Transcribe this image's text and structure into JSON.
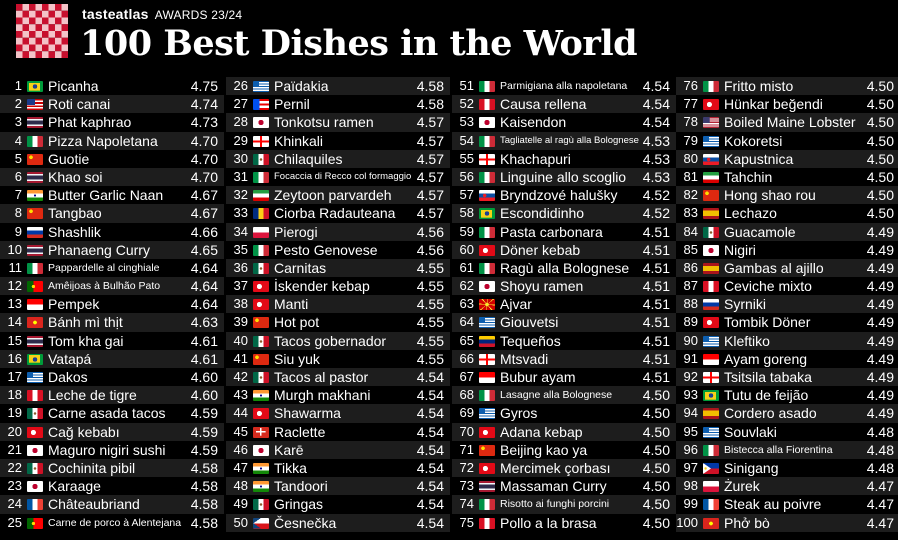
{
  "header": {
    "brand": "tasteatlas",
    "awards": "AWARDS 23/24",
    "title": "100 Best Dishes in the World"
  },
  "colors": {
    "background": "#000000",
    "row_alt": "#1d1d1d",
    "logo_red": "#c8102e",
    "text": "#ffffff"
  },
  "dishes": [
    {
      "rank": "1",
      "name": "Picanha",
      "score": "4.75",
      "flag": "brazil"
    },
    {
      "rank": "2",
      "name": "Roti canai",
      "score": "4.74",
      "flag": "malaysia"
    },
    {
      "rank": "3",
      "name": "Phat kaphrao",
      "score": "4.73",
      "flag": "thailand"
    },
    {
      "rank": "4",
      "name": "Pizza Napoletana",
      "score": "4.70",
      "flag": "italy"
    },
    {
      "rank": "5",
      "name": "Guotie",
      "score": "4.70",
      "flag": "china"
    },
    {
      "rank": "6",
      "name": "Khao soi",
      "score": "4.70",
      "flag": "thailand"
    },
    {
      "rank": "7",
      "name": "Butter Garlic Naan",
      "score": "4.67",
      "flag": "india"
    },
    {
      "rank": "8",
      "name": "Tangbao",
      "score": "4.67",
      "flag": "china"
    },
    {
      "rank": "9",
      "name": "Shashlik",
      "score": "4.66",
      "flag": "russia"
    },
    {
      "rank": "10",
      "name": "Phanaeng Curry",
      "score": "4.65",
      "flag": "thailand"
    },
    {
      "rank": "11",
      "name": "Pappardelle al cinghiale",
      "score": "4.64",
      "flag": "italy"
    },
    {
      "rank": "12",
      "name": "Amêijoas à Bulhão Pato",
      "score": "4.64",
      "flag": "portugal"
    },
    {
      "rank": "13",
      "name": "Pempek",
      "score": "4.64",
      "flag": "indonesia"
    },
    {
      "rank": "14",
      "name": "Bánh mì thịt",
      "score": "4.63",
      "flag": "vietnam"
    },
    {
      "rank": "15",
      "name": "Tom kha gai",
      "score": "4.61",
      "flag": "thailand"
    },
    {
      "rank": "16",
      "name": "Vatapá",
      "score": "4.61",
      "flag": "brazil"
    },
    {
      "rank": "17",
      "name": "Dakos",
      "score": "4.60",
      "flag": "greece"
    },
    {
      "rank": "18",
      "name": "Leche de tigre",
      "score": "4.60",
      "flag": "peru"
    },
    {
      "rank": "19",
      "name": "Carne asada tacos",
      "score": "4.59",
      "flag": "mexico"
    },
    {
      "rank": "20",
      "name": "Cağ kebabı",
      "score": "4.59",
      "flag": "turkey"
    },
    {
      "rank": "21",
      "name": "Maguro nigiri sushi",
      "score": "4.59",
      "flag": "japan"
    },
    {
      "rank": "22",
      "name": "Cochinita pibil",
      "score": "4.58",
      "flag": "mexico"
    },
    {
      "rank": "23",
      "name": "Karaage",
      "score": "4.58",
      "flag": "japan"
    },
    {
      "rank": "24",
      "name": "Châteaubriand",
      "score": "4.58",
      "flag": "france"
    },
    {
      "rank": "25",
      "name": "Carne de porco à Alentejana",
      "score": "4.58",
      "flag": "portugal"
    },
    {
      "rank": "26",
      "name": "Païdakia",
      "score": "4.58",
      "flag": "greece"
    },
    {
      "rank": "27",
      "name": "Pernil",
      "score": "4.58",
      "flag": "puertorico"
    },
    {
      "rank": "28",
      "name": "Tonkotsu ramen",
      "score": "4.57",
      "flag": "japan"
    },
    {
      "rank": "29",
      "name": "Khinkali",
      "score": "4.57",
      "flag": "georgia"
    },
    {
      "rank": "30",
      "name": "Chilaquiles",
      "score": "4.57",
      "flag": "mexico"
    },
    {
      "rank": "31",
      "name": "Focaccia di Recco col formaggio",
      "score": "4.57",
      "flag": "italy"
    },
    {
      "rank": "32",
      "name": "Zeytoon parvardeh",
      "score": "4.57",
      "flag": "iran"
    },
    {
      "rank": "33",
      "name": "Ciorba Radauteana",
      "score": "4.57",
      "flag": "romania"
    },
    {
      "rank": "34",
      "name": "Pierogi",
      "score": "4.56",
      "flag": "poland"
    },
    {
      "rank": "35",
      "name": "Pesto Genovese",
      "score": "4.56",
      "flag": "italy"
    },
    {
      "rank": "36",
      "name": "Carnitas",
      "score": "4.55",
      "flag": "mexico"
    },
    {
      "rank": "37",
      "name": "İskender kebap",
      "score": "4.55",
      "flag": "turkey"
    },
    {
      "rank": "38",
      "name": "Manti",
      "score": "4.55",
      "flag": "turkey"
    },
    {
      "rank": "39",
      "name": "Hot pot",
      "score": "4.55",
      "flag": "china"
    },
    {
      "rank": "40",
      "name": "Tacos gobernador",
      "score": "4.55",
      "flag": "mexico"
    },
    {
      "rank": "41",
      "name": "Siu yuk",
      "score": "4.55",
      "flag": "china"
    },
    {
      "rank": "42",
      "name": "Tacos al pastor",
      "score": "4.54",
      "flag": "mexico"
    },
    {
      "rank": "43",
      "name": "Murgh makhani",
      "score": "4.54",
      "flag": "india"
    },
    {
      "rank": "44",
      "name": "Shawarma",
      "score": "4.54",
      "flag": "turkey"
    },
    {
      "rank": "45",
      "name": "Raclette",
      "score": "4.54",
      "flag": "switzerland"
    },
    {
      "rank": "46",
      "name": "Karē",
      "score": "4.54",
      "flag": "japan"
    },
    {
      "rank": "47",
      "name": "Tikka",
      "score": "4.54",
      "flag": "india"
    },
    {
      "rank": "48",
      "name": "Tandoori",
      "score": "4.54",
      "flag": "india"
    },
    {
      "rank": "49",
      "name": "Gringas",
      "score": "4.54",
      "flag": "mexico"
    },
    {
      "rank": "50",
      "name": "Česnečka",
      "score": "4.54",
      "flag": "czech"
    },
    {
      "rank": "51",
      "name": "Parmigiana alla napoletana",
      "score": "4.54",
      "flag": "italy"
    },
    {
      "rank": "52",
      "name": "Causa rellena",
      "score": "4.54",
      "flag": "peru"
    },
    {
      "rank": "53",
      "name": "Kaisendon",
      "score": "4.54",
      "flag": "japan"
    },
    {
      "rank": "54",
      "name": "Tagliatelle al ragù alla Bolognese",
      "score": "4.53",
      "flag": "italy"
    },
    {
      "rank": "55",
      "name": "Khachapuri",
      "score": "4.53",
      "flag": "georgia"
    },
    {
      "rank": "56",
      "name": "Linguine allo scoglio",
      "score": "4.53",
      "flag": "italy"
    },
    {
      "rank": "57",
      "name": "Bryndzové halušky",
      "score": "4.52",
      "flag": "slovakia"
    },
    {
      "rank": "58",
      "name": "Escondidinho",
      "score": "4.52",
      "flag": "brazil"
    },
    {
      "rank": "59",
      "name": "Pasta carbonara",
      "score": "4.51",
      "flag": "italy"
    },
    {
      "rank": "60",
      "name": "Döner kebab",
      "score": "4.51",
      "flag": "turkey"
    },
    {
      "rank": "61",
      "name": "Ragù alla Bolognese",
      "score": "4.51",
      "flag": "italy"
    },
    {
      "rank": "62",
      "name": "Shoyu ramen",
      "score": "4.51",
      "flag": "japan"
    },
    {
      "rank": "63",
      "name": "Ajvar",
      "score": "4.51",
      "flag": "macedonia"
    },
    {
      "rank": "64",
      "name": "Giouvetsi",
      "score": "4.51",
      "flag": "greece"
    },
    {
      "rank": "65",
      "name": "Tequeños",
      "score": "4.51",
      "flag": "venezuela"
    },
    {
      "rank": "66",
      "name": "Mtsvadi",
      "score": "4.51",
      "flag": "georgia"
    },
    {
      "rank": "67",
      "name": "Bubur ayam",
      "score": "4.51",
      "flag": "indonesia"
    },
    {
      "rank": "68",
      "name": "Lasagne alla Bolognese",
      "score": "4.50",
      "flag": "italy"
    },
    {
      "rank": "69",
      "name": "Gyros",
      "score": "4.50",
      "flag": "greece"
    },
    {
      "rank": "70",
      "name": "Adana kebap",
      "score": "4.50",
      "flag": "turkey"
    },
    {
      "rank": "71",
      "name": "Beijing kao ya",
      "score": "4.50",
      "flag": "china"
    },
    {
      "rank": "72",
      "name": "Mercimek çorbası",
      "score": "4.50",
      "flag": "turkey"
    },
    {
      "rank": "73",
      "name": "Massaman Curry",
      "score": "4.50",
      "flag": "thailand"
    },
    {
      "rank": "74",
      "name": "Risotto ai funghi porcini",
      "score": "4.50",
      "flag": "italy"
    },
    {
      "rank": "75",
      "name": "Pollo a la brasa",
      "score": "4.50",
      "flag": "peru"
    },
    {
      "rank": "76",
      "name": "Fritto misto",
      "score": "4.50",
      "flag": "italy"
    },
    {
      "rank": "77",
      "name": "Hünkar beğendi",
      "score": "4.50",
      "flag": "turkey"
    },
    {
      "rank": "78",
      "name": "Boiled Maine Lobster",
      "score": "4.50",
      "flag": "usa"
    },
    {
      "rank": "79",
      "name": "Kokoretsi",
      "score": "4.50",
      "flag": "greece"
    },
    {
      "rank": "80",
      "name": "Kapustnica",
      "score": "4.50",
      "flag": "slovakia"
    },
    {
      "rank": "81",
      "name": "Tahchin",
      "score": "4.50",
      "flag": "iran"
    },
    {
      "rank": "82",
      "name": "Hong shao rou",
      "score": "4.50",
      "flag": "china"
    },
    {
      "rank": "83",
      "name": "Lechazo",
      "score": "4.50",
      "flag": "spain"
    },
    {
      "rank": "84",
      "name": "Guacamole",
      "score": "4.49",
      "flag": "mexico"
    },
    {
      "rank": "85",
      "name": "Nigiri",
      "score": "4.49",
      "flag": "japan"
    },
    {
      "rank": "86",
      "name": "Gambas al ajillo",
      "score": "4.49",
      "flag": "spain"
    },
    {
      "rank": "87",
      "name": "Ceviche mixto",
      "score": "4.49",
      "flag": "peru"
    },
    {
      "rank": "88",
      "name": "Syrniki",
      "score": "4.49",
      "flag": "russia"
    },
    {
      "rank": "89",
      "name": "Tombik Döner",
      "score": "4.49",
      "flag": "turkey"
    },
    {
      "rank": "90",
      "name": "Kleftiko",
      "score": "4.49",
      "flag": "greece"
    },
    {
      "rank": "91",
      "name": "Ayam goreng",
      "score": "4.49",
      "flag": "indonesia"
    },
    {
      "rank": "92",
      "name": "Tsitsila tabaka",
      "score": "4.49",
      "flag": "georgia"
    },
    {
      "rank": "93",
      "name": "Tutu de feijão",
      "score": "4.49",
      "flag": "brazil"
    },
    {
      "rank": "94",
      "name": "Cordero asado",
      "score": "4.49",
      "flag": "spain"
    },
    {
      "rank": "95",
      "name": "Souvlaki",
      "score": "4.48",
      "flag": "greece"
    },
    {
      "rank": "96",
      "name": "Bistecca alla Fiorentina",
      "score": "4.48",
      "flag": "italy"
    },
    {
      "rank": "97",
      "name": "Sinigang",
      "score": "4.48",
      "flag": "philippines"
    },
    {
      "rank": "98",
      "name": "Żurek",
      "score": "4.47",
      "flag": "poland"
    },
    {
      "rank": "99",
      "name": "Steak au poivre",
      "score": "4.47",
      "flag": "france"
    },
    {
      "rank": "100",
      "name": "Phở bò",
      "score": "4.47",
      "flag": "vietnam"
    }
  ]
}
